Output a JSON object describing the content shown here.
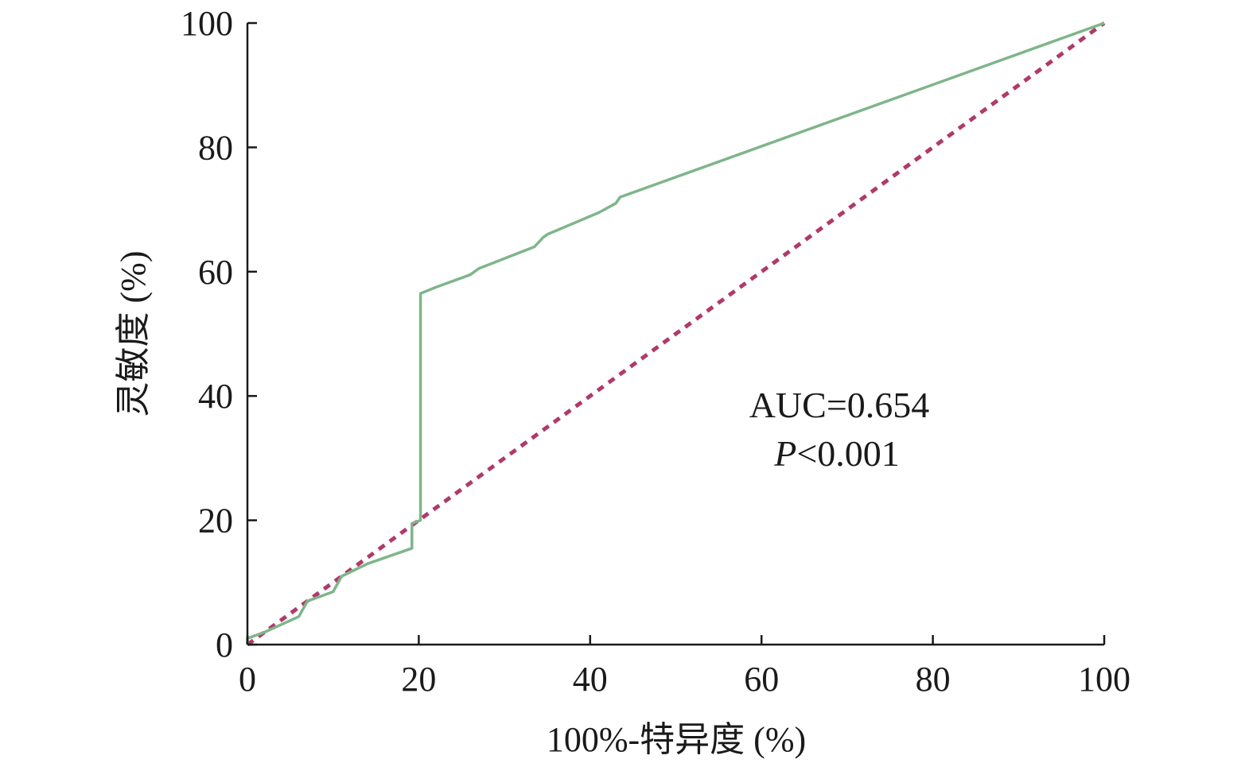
{
  "chart_data": {
    "type": "line",
    "xlabel": "100%-特异度 (%)",
    "ylabel": "灵敏度 (%)",
    "xlim": [
      0,
      100
    ],
    "ylim": [
      0,
      100
    ],
    "x_ticks": [
      "0",
      "20",
      "40",
      "60",
      "80",
      "100"
    ],
    "y_ticks": [
      "0",
      "20",
      "40",
      "60",
      "80",
      "100"
    ],
    "grid": false,
    "annotations": {
      "auc": "AUC=0.654",
      "p_prefix": "P",
      "p_value": "<0.001"
    },
    "series": [
      {
        "style": "solid",
        "color": "#7fb58a",
        "x": [
          0,
          0,
          2,
          6,
          7,
          10,
          11,
          14,
          19.2,
          19.2,
          20.2,
          20.2,
          22,
          26,
          27,
          33.5,
          34.5,
          35,
          41,
          43,
          43.5,
          100
        ],
        "y": [
          0,
          1,
          2,
          4.5,
          7,
          8.5,
          11,
          13,
          15.5,
          19.5,
          20,
          56.5,
          57.5,
          59.5,
          60.5,
          64,
          65.5,
          66,
          69.5,
          71,
          72,
          100
        ]
      },
      {
        "style": "dashed",
        "color": "#b03a6a",
        "x": [
          0,
          100
        ],
        "y": [
          0,
          100
        ]
      }
    ]
  }
}
